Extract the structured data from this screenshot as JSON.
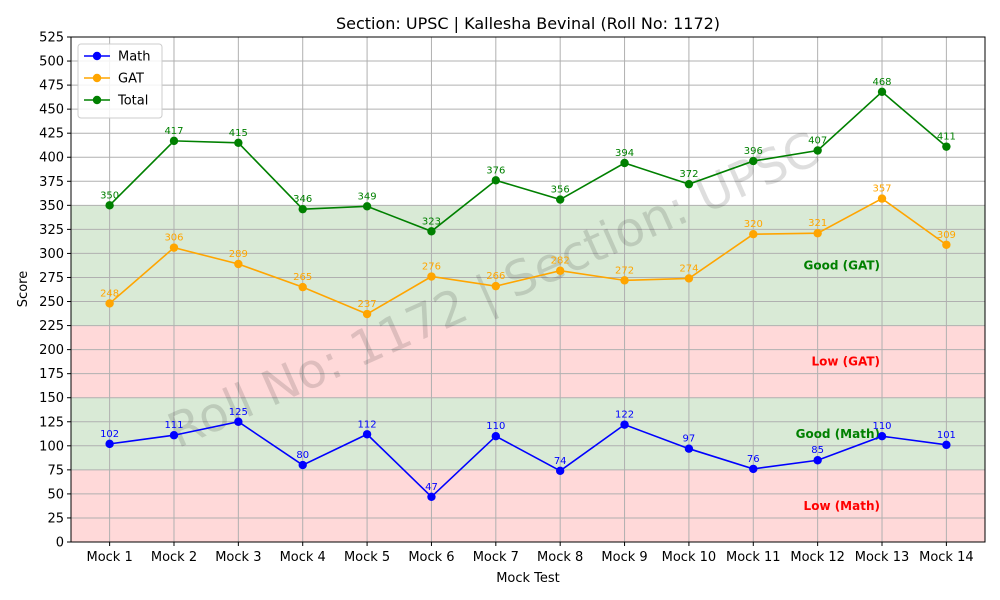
{
  "chart_data": {
    "type": "line",
    "title": "Section: UPSC | Kallesha Bevinal (Roll No: 1172)",
    "xlabel": "Mock Test",
    "ylabel": "Score",
    "ylim": [
      0,
      525
    ],
    "y_ticks": [
      0,
      25,
      50,
      75,
      100,
      125,
      150,
      175,
      200,
      225,
      250,
      275,
      300,
      325,
      350,
      375,
      400,
      425,
      450,
      475,
      500,
      525
    ],
    "categories": [
      "Mock 1",
      "Mock 2",
      "Mock 3",
      "Mock 4",
      "Mock 5",
      "Mock 6",
      "Mock 7",
      "Mock 8",
      "Mock 9",
      "Mock 10",
      "Mock 11",
      "Mock 12",
      "Mock 13",
      "Mock 14"
    ],
    "series": [
      {
        "name": "Math",
        "color": "#0000ff",
        "values": [
          102,
          111,
          125,
          80,
          112,
          47,
          110,
          74,
          122,
          97,
          76,
          85,
          110,
          101
        ]
      },
      {
        "name": "GAT",
        "color": "#ffa500",
        "values": [
          248,
          306,
          289,
          265,
          237,
          276,
          266,
          282,
          272,
          274,
          320,
          321,
          357,
          309
        ]
      },
      {
        "name": "Total",
        "color": "#008000",
        "values": [
          350,
          417,
          415,
          346,
          349,
          323,
          376,
          356,
          394,
          372,
          396,
          407,
          468,
          411
        ]
      }
    ],
    "bands": [
      {
        "label": "Low (Math)",
        "from": 0,
        "to": 75,
        "fill": "#ffd9d9",
        "text_color": "#ff0000"
      },
      {
        "label": "Good (Math)",
        "from": 75,
        "to": 150,
        "fill": "#d9ead6",
        "text_color": "#008000"
      },
      {
        "label": "Low (GAT)",
        "from": 150,
        "to": 225,
        "fill": "#ffd9d9",
        "text_color": "#ff0000"
      },
      {
        "label": "Good (GAT)",
        "from": 225,
        "to": 350,
        "fill": "#d9ead6",
        "text_color": "#008000"
      }
    ],
    "watermark": "Roll No: 1172 | Section: UPSC",
    "grid": true,
    "legend_position": "top-left"
  }
}
